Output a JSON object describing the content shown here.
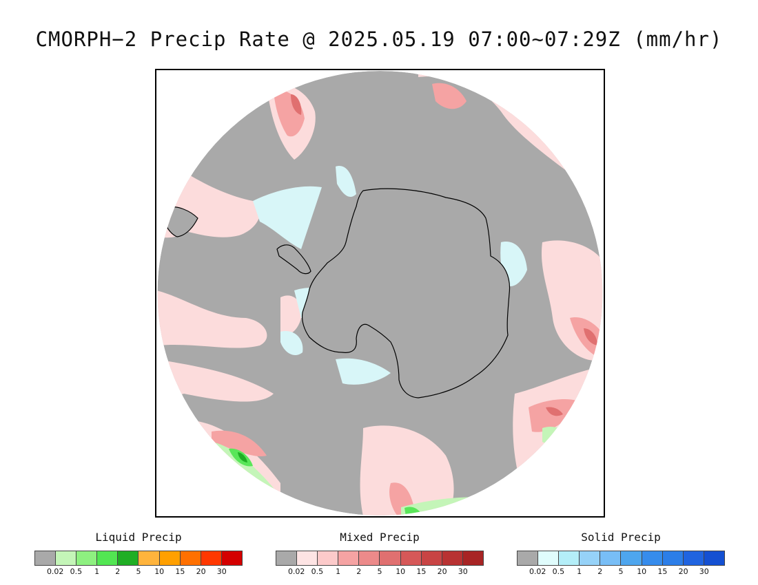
{
  "title": "CMORPH−2 Precip Rate @ 2025.05.19 07:00~07:29Z (mm/hr)",
  "map": {
    "projection": "south-polar-stereographic",
    "colors": {
      "no_precip": "#a9a9a9",
      "mixed_light": "#fcdcdc",
      "mixed_mid": "#f5a3a3",
      "mixed_heavy": "#e07070",
      "solid_light": "#d8f6f8",
      "liquid_light": "#c4f5b8",
      "liquid_mid": "#59e659",
      "liquid_heavy": "#1fae24",
      "coastline": "#000000"
    }
  },
  "legends": [
    {
      "title": "Liquid Precip",
      "colors": [
        "#a9a9a9",
        "#c4f5b8",
        "#8ef080",
        "#52e652",
        "#1fae24",
        "#ffb43c",
        "#ffa000",
        "#ff7000",
        "#ff3800",
        "#d40000"
      ],
      "ticks": [
        "0.02",
        "0.5",
        "1",
        "2",
        "5",
        "10",
        "15",
        "20",
        "30"
      ]
    },
    {
      "title": "Mixed Precip",
      "colors": [
        "#a9a9a9",
        "#fde4e4",
        "#fccaca",
        "#f5a3a3",
        "#ec8a8a",
        "#e07070",
        "#d65858",
        "#c84444",
        "#b83232",
        "#a82424"
      ],
      "ticks": [
        "0.02",
        "0.5",
        "1",
        "2",
        "5",
        "10",
        "15",
        "20",
        "30"
      ]
    },
    {
      "title": "Solid Precip",
      "colors": [
        "#a9a9a9",
        "#e0fcfc",
        "#b4eef8",
        "#96d2f8",
        "#78bef6",
        "#4ea6ee",
        "#368cec",
        "#2c7ee8",
        "#2064e0",
        "#1450d2"
      ],
      "ticks": [
        "0.02",
        "0.5",
        "1",
        "2",
        "5",
        "10",
        "15",
        "20",
        "30"
      ]
    }
  ]
}
